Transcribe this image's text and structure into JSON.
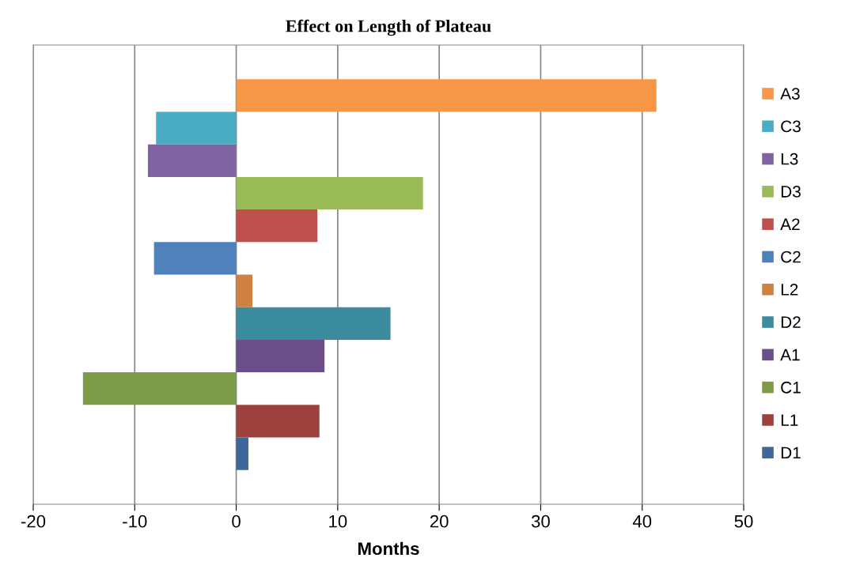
{
  "chart_data": {
    "type": "bar",
    "orientation": "horizontal",
    "title": "Effect on Length of Plateau",
    "xlabel": "Months",
    "categories": [
      null
    ],
    "series": [
      {
        "name": "A3",
        "color": "#f79646",
        "values": [
          41.4
        ]
      },
      {
        "name": "C3",
        "color": "#4bacc6",
        "values": [
          -7.9
        ]
      },
      {
        "name": "L3",
        "color": "#8064a2",
        "values": [
          -8.7
        ]
      },
      {
        "name": "D3",
        "color": "#9bbb59",
        "values": [
          18.4
        ]
      },
      {
        "name": "A2",
        "color": "#c0504d",
        "values": [
          8.0
        ]
      },
      {
        "name": "C2",
        "color": "#4f81bd",
        "values": [
          -8.1
        ]
      },
      {
        "name": "L2",
        "color": "#d0813f",
        "values": [
          1.6
        ]
      },
      {
        "name": "D2",
        "color": "#3a8c9e",
        "values": [
          15.2
        ]
      },
      {
        "name": "A1",
        "color": "#6a4f8a",
        "values": [
          8.7
        ]
      },
      {
        "name": "C1",
        "color": "#7e9b48",
        "values": [
          -15.1
        ]
      },
      {
        "name": "L1",
        "color": "#9e413e",
        "values": [
          8.2
        ]
      },
      {
        "name": "D1",
        "color": "#3e679a",
        "values": [
          1.2
        ]
      }
    ],
    "xlim": [
      -20,
      50
    ],
    "xticks": [
      -20,
      -10,
      0,
      10,
      20,
      30,
      40,
      50
    ],
    "grid": "x",
    "legend": "right",
    "tick_labels": "x"
  }
}
